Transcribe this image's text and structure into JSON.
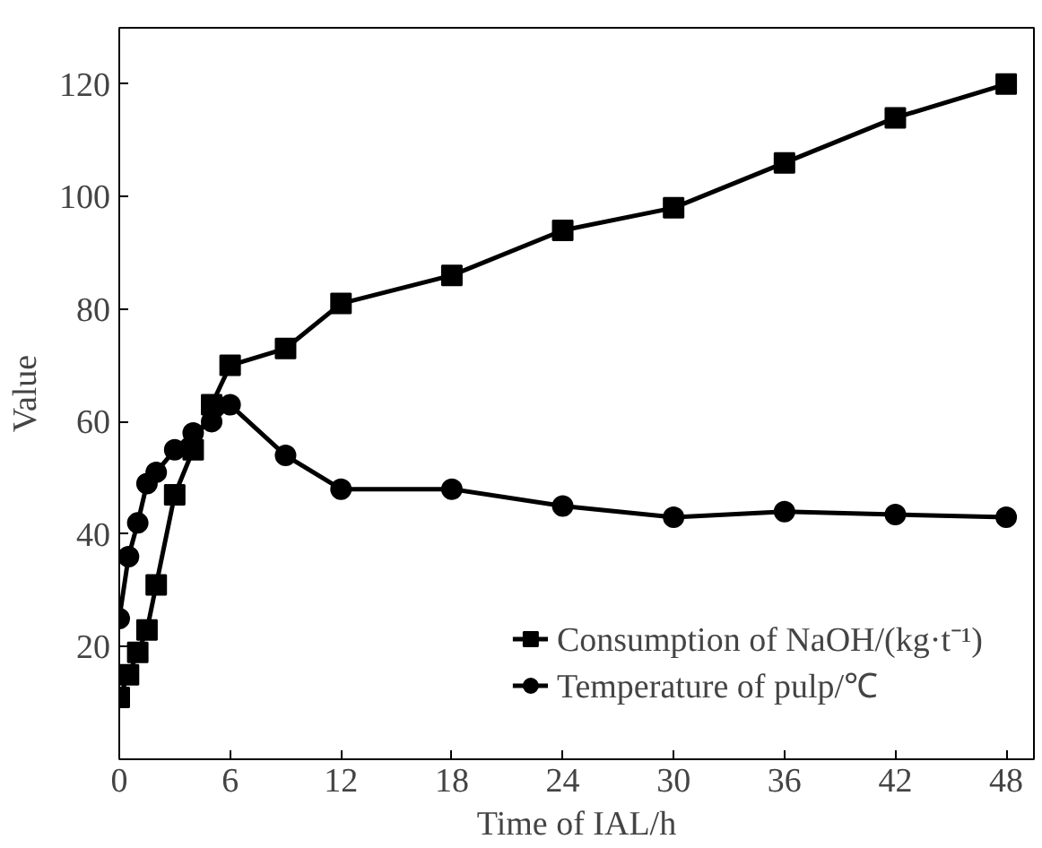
{
  "chart_data": {
    "type": "line",
    "xlabel": "Time of IAL/h",
    "ylabel": "Value",
    "xlim": [
      0,
      49.5
    ],
    "ylim": [
      0,
      130
    ],
    "xticks": [
      0,
      6,
      12,
      18,
      24,
      30,
      36,
      42,
      48
    ],
    "yticks": [
      20,
      40,
      60,
      80,
      100,
      120
    ],
    "grid": false,
    "legend": "bottom right",
    "line_style": "solid",
    "series": [
      {
        "name": "Consumption of NaOH/(kg·t⁻¹)",
        "color": "#000000",
        "marker": "square",
        "x": [
          0,
          0.5,
          1,
          1.5,
          2,
          3,
          4,
          5,
          6,
          9,
          12,
          18,
          24,
          30,
          36,
          42,
          48
        ],
        "values": [
          11,
          15,
          19,
          23,
          31,
          47,
          55,
          63,
          70,
          73,
          81,
          86,
          94,
          98,
          106,
          114,
          120
        ]
      },
      {
        "name": "Temperature of pulp/℃",
        "color": "#000000",
        "marker": "circle",
        "x": [
          0,
          0.5,
          1,
          1.5,
          2,
          3,
          4,
          5,
          6,
          9,
          12,
          18,
          24,
          30,
          36,
          42,
          48
        ],
        "values": [
          25,
          36,
          42,
          49,
          51,
          55,
          58,
          60,
          63,
          54,
          48,
          48,
          45,
          43,
          44,
          43.5,
          43
        ]
      }
    ]
  }
}
